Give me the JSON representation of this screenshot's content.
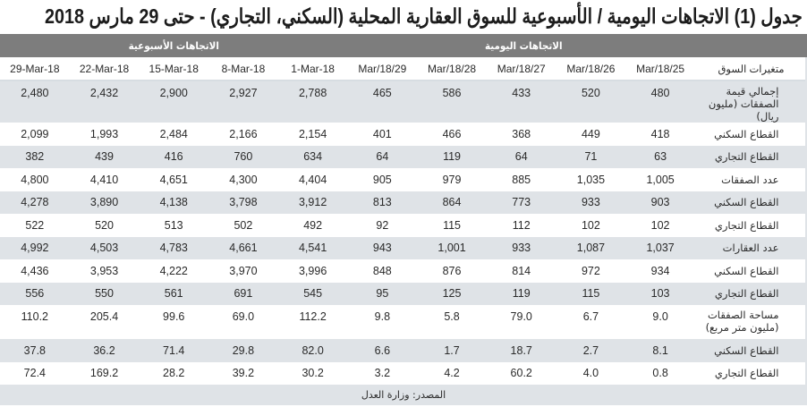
{
  "title": "جدول (1) الاتجاهات اليومية / الأسبوعية  للسوق العقارية المحلية (السكني، التجاري) - حتى 29 مارس 2018",
  "group_headers": {
    "weekly": "الاتجاهات الأسبوعية",
    "daily": "الاتجاهات اليومية"
  },
  "column_headers": {
    "label": "متغيرات السوق",
    "columns": [
      "29-Mar-18",
      "22-Mar-18",
      "15-Mar-18",
      "8-Mar-18",
      "1-Mar-18",
      "Mar/18/29",
      "Mar/18/28",
      "Mar/18/27",
      "Mar/18/26",
      "Mar/18/25"
    ]
  },
  "rows": [
    {
      "label": "إجمالي قيمة الصفقات (مليون ريال)",
      "values": [
        "2,480",
        "2,432",
        "2,900",
        "2,927",
        "2,788",
        "465",
        "586",
        "433",
        "520",
        "480"
      ]
    },
    {
      "label": "القطاع السكني",
      "values": [
        "2,099",
        "1,993",
        "2,484",
        "2,166",
        "2,154",
        "401",
        "466",
        "368",
        "449",
        "418"
      ]
    },
    {
      "label": "القطاع التجاري",
      "values": [
        "382",
        "439",
        "416",
        "760",
        "634",
        "64",
        "119",
        "64",
        "71",
        "63"
      ]
    },
    {
      "label": "عدد الصفقات",
      "values": [
        "4,800",
        "4,410",
        "4,651",
        "4,300",
        "4,404",
        "905",
        "979",
        "885",
        "1,035",
        "1,005"
      ]
    },
    {
      "label": "القطاع السكني",
      "values": [
        "4,278",
        "3,890",
        "4,138",
        "3,798",
        "3,912",
        "813",
        "864",
        "773",
        "933",
        "903"
      ]
    },
    {
      "label": "القطاع التجاري",
      "values": [
        "522",
        "520",
        "513",
        "502",
        "492",
        "92",
        "115",
        "112",
        "102",
        "102"
      ]
    },
    {
      "label": "عدد العقارات",
      "values": [
        "4,992",
        "4,503",
        "4,783",
        "4,661",
        "4,541",
        "943",
        "1,001",
        "933",
        "1,087",
        "1,037"
      ]
    },
    {
      "label": "القطاع السكني",
      "values": [
        "4,436",
        "3,953",
        "4,222",
        "3,970",
        "3,996",
        "848",
        "876",
        "814",
        "972",
        "934"
      ]
    },
    {
      "label": "القطاع التجاري",
      "values": [
        "556",
        "550",
        "561",
        "691",
        "545",
        "95",
        "125",
        "119",
        "115",
        "103"
      ]
    },
    {
      "label": "مساحة الصفقات (مليون متر مربع)",
      "values": [
        "110.2",
        "205.4",
        "99.6",
        "69.0",
        "112.2",
        "9.8",
        "5.8",
        "79.0",
        "6.7",
        "9.0"
      ]
    },
    {
      "label": "القطاع السكني",
      "values": [
        "37.8",
        "36.2",
        "71.4",
        "29.8",
        "82.0",
        "6.6",
        "1.7",
        "18.7",
        "2.7",
        "8.1"
      ]
    },
    {
      "label": "القطاع التجاري",
      "values": [
        "72.4",
        "169.2",
        "28.2",
        "39.2",
        "30.2",
        "3.2",
        "4.2",
        "60.2",
        "4.0",
        "0.8"
      ]
    }
  ],
  "source": "المصدر: وزارة العدل",
  "colors": {
    "header_bg": "#7d7d7d",
    "shade_row": "#dfe3e7",
    "plain_row": "#ffffff"
  }
}
